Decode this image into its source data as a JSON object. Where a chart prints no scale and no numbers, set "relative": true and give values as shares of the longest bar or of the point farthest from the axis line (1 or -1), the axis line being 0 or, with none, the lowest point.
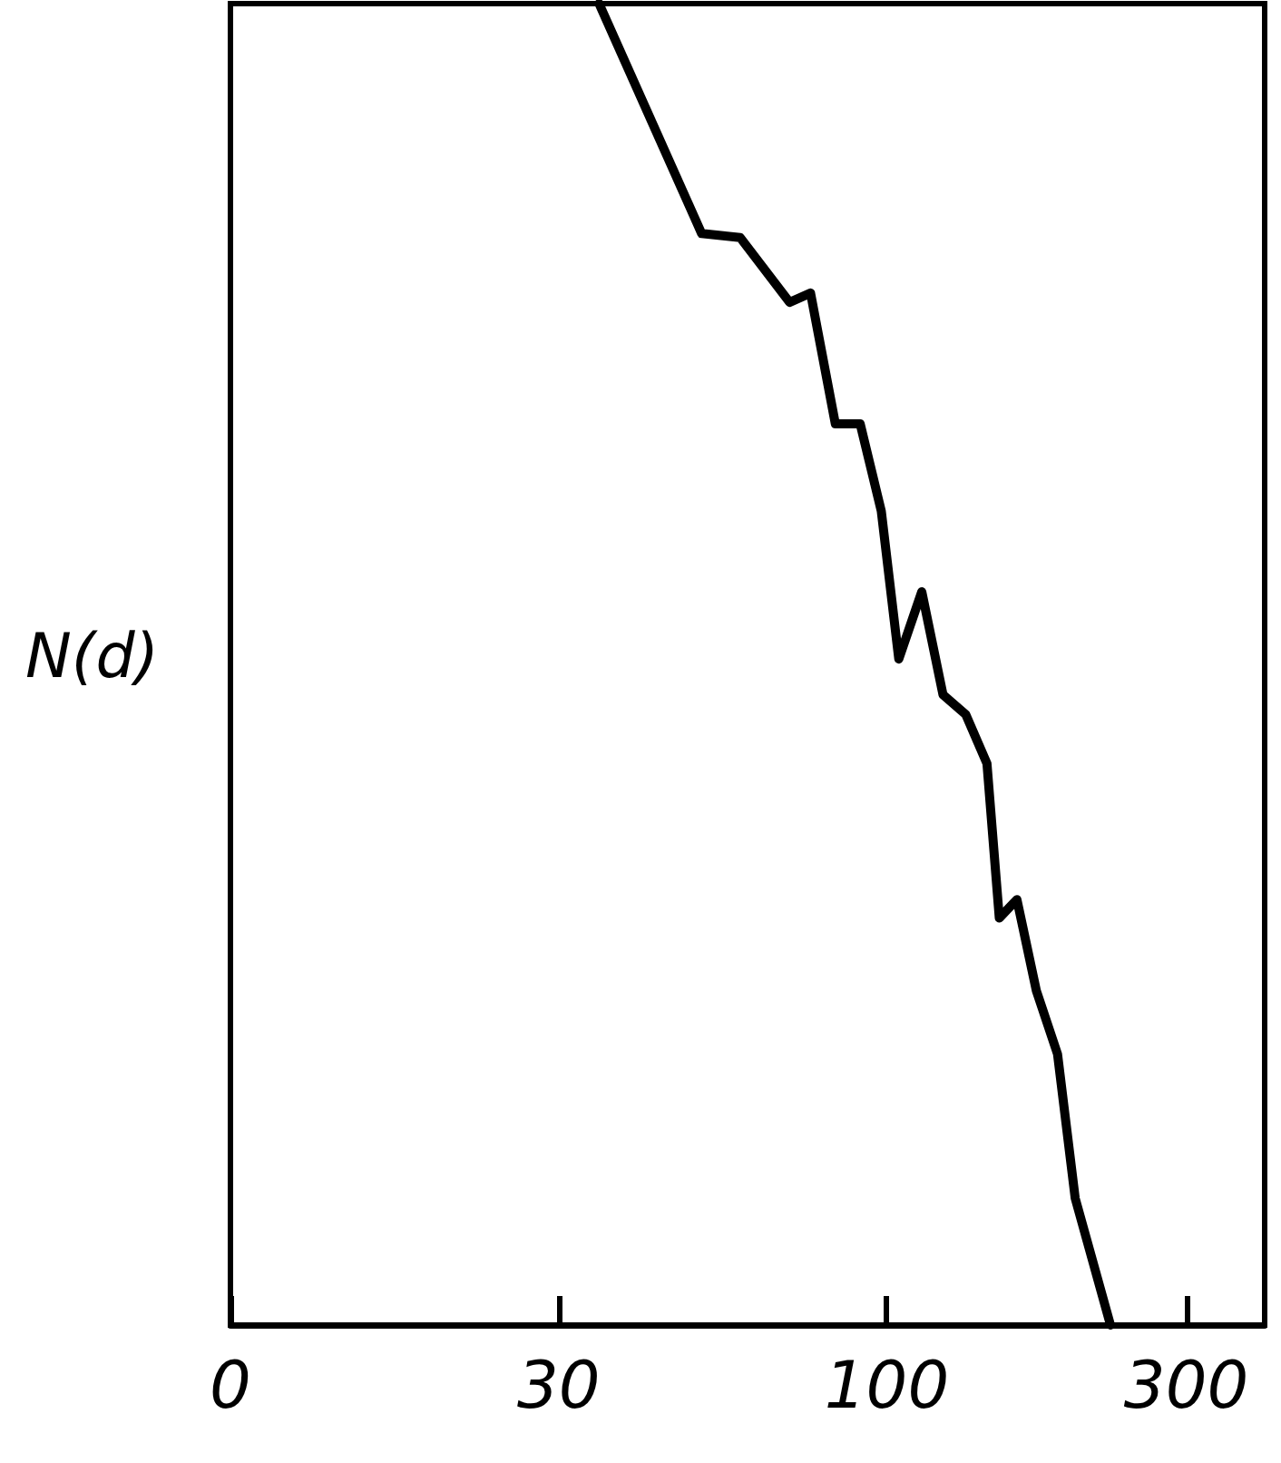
{
  "chart_data": {
    "type": "line",
    "ylabel": "N(d)",
    "relative": true,
    "log": "x",
    "marker": "none",
    "line_style": "solid",
    "grid": false,
    "x": [
      34.8,
      50.7,
      58.4,
      70.0,
      75.6,
      82.8,
      90.7,
      98.0,
      104.5,
      113.7,
      122.9,
      133.6,
      144.4,
      151.1,
      161.2,
      173.1,
      187.1,
      199.6,
      227.2
    ],
    "series": [
      {
        "color": "#000000",
        "values": [
          1,
          0.826,
          0.823,
          0.774,
          0.781,
          0.682,
          0.682,
          0.616,
          0.504,
          0.555,
          0.477,
          0.462,
          0.425,
          0.308,
          0.322,
          0.253,
          0.205,
          0.096,
          0
        ]
      }
    ],
    "xlim": [
      0,
      400
    ],
    "xticks": [
      0,
      30,
      100,
      300
    ]
  }
}
